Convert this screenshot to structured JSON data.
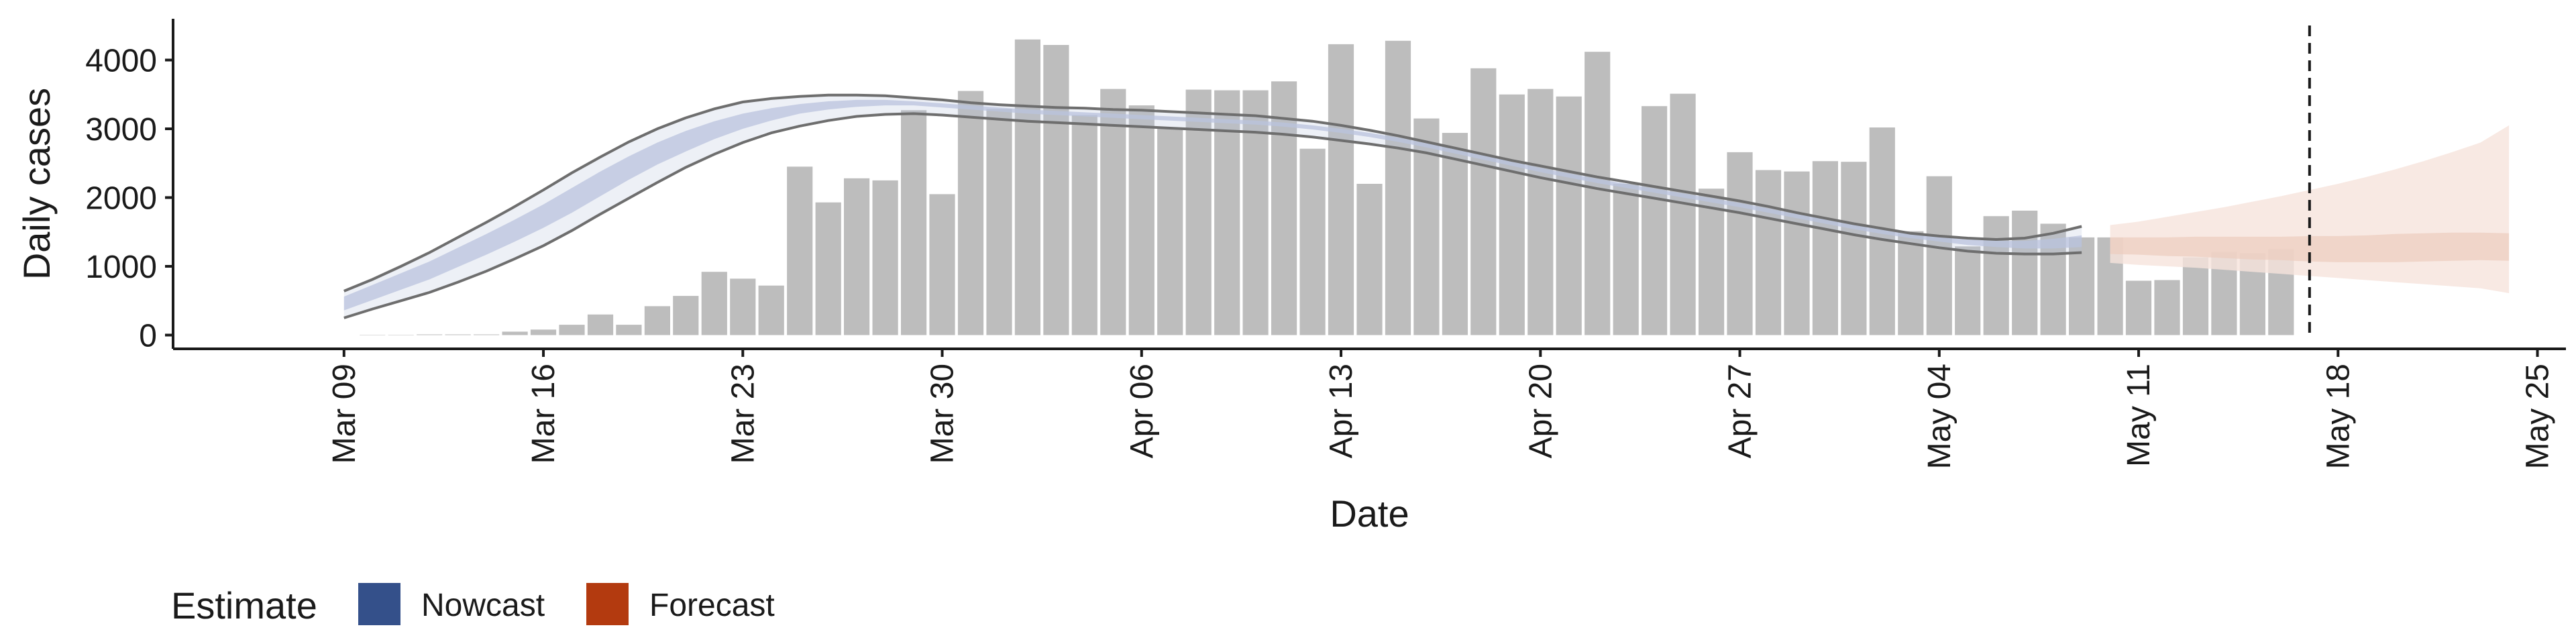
{
  "chart_data": {
    "type": "bar",
    "xlabel": "Date",
    "ylabel": "Daily cases",
    "x_ticks": [
      "Mar 09",
      "Mar 16",
      "Mar 23",
      "Mar 30",
      "Apr 06",
      "Apr 13",
      "Apr 20",
      "Apr 27",
      "May 04",
      "May 11",
      "May 18",
      "May 25"
    ],
    "x_range": [
      "2020-03-03",
      "2020-05-26"
    ],
    "y_ticks": [
      0,
      1000,
      2000,
      3000,
      4000
    ],
    "ylim": [
      -200,
      4600
    ],
    "grid": false,
    "reported_cases": {
      "start_date": "2020-03-10",
      "values": [
        0,
        0,
        10,
        10,
        10,
        50,
        80,
        150,
        300,
        150,
        420,
        570,
        920,
        820,
        720,
        2450,
        1930,
        2280,
        2250,
        3270,
        2050,
        3550,
        3290,
        4300,
        4220,
        3200,
        3580,
        3340,
        3010,
        3570,
        3560,
        3560,
        3690,
        2710,
        4230,
        2200,
        4280,
        3150,
        2940,
        3880,
        3500,
        3580,
        3470,
        4120,
        2200,
        3330,
        3510,
        2130,
        2660,
        2400,
        2380,
        2530,
        2520,
        3020,
        1510,
        2310,
        1290,
        1730,
        1810,
        1620,
        1420,
        1420,
        790,
        800,
        1130,
        1210,
        1190,
        1250
      ]
    },
    "nowcast": {
      "start_date": "2020-03-09",
      "median": [
        460,
        620,
        780,
        940,
        1130,
        1320,
        1520,
        1730,
        1960,
        2200,
        2430,
        2640,
        2820,
        2980,
        3110,
        3210,
        3290,
        3340,
        3370,
        3380,
        3370,
        3340,
        3310,
        3280,
        3250,
        3230,
        3210,
        3190,
        3170,
        3150,
        3130,
        3110,
        3090,
        3060,
        3020,
        2970,
        2910,
        2840,
        2760,
        2670,
        2580,
        2490,
        2400,
        2320,
        2240,
        2170,
        2100,
        2030,
        1960,
        1890,
        1810,
        1730,
        1650,
        1570,
        1500,
        1440,
        1390,
        1350,
        1320,
        1310,
        1320,
        1350
      ],
      "outer_upper": [
        640,
        810,
        1000,
        1200,
        1420,
        1640,
        1870,
        2110,
        2360,
        2590,
        2810,
        3000,
        3160,
        3290,
        3390,
        3440,
        3470,
        3490,
        3490,
        3480,
        3450,
        3420,
        3380,
        3350,
        3330,
        3310,
        3300,
        3280,
        3270,
        3250,
        3230,
        3210,
        3190,
        3150,
        3110,
        3050,
        2980,
        2900,
        2810,
        2720,
        2630,
        2540,
        2460,
        2380,
        2300,
        2230,
        2160,
        2090,
        2020,
        1950,
        1870,
        1780,
        1700,
        1620,
        1550,
        1480,
        1440,
        1410,
        1390,
        1410,
        1480,
        1580
      ],
      "outer_lower": [
        250,
        380,
        500,
        620,
        770,
        930,
        1110,
        1300,
        1520,
        1760,
        1990,
        2220,
        2440,
        2630,
        2800,
        2940,
        3040,
        3120,
        3180,
        3210,
        3220,
        3200,
        3170,
        3140,
        3110,
        3090,
        3070,
        3050,
        3030,
        3010,
        2990,
        2970,
        2950,
        2920,
        2880,
        2830,
        2780,
        2720,
        2650,
        2560,
        2470,
        2380,
        2290,
        2210,
        2130,
        2060,
        1990,
        1920,
        1850,
        1780,
        1700,
        1620,
        1540,
        1460,
        1390,
        1330,
        1270,
        1220,
        1190,
        1180,
        1180,
        1200
      ],
      "inner_upper": [
        560,
        730,
        900,
        1070,
        1270,
        1470,
        1680,
        1900,
        2140,
        2380,
        2600,
        2800,
        2970,
        3110,
        3220,
        3300,
        3360,
        3400,
        3420,
        3420,
        3400,
        3370,
        3340,
        3310,
        3280,
        3260,
        3240,
        3220,
        3200,
        3180,
        3160,
        3140,
        3120,
        3090,
        3050,
        3000,
        2940,
        2870,
        2790,
        2700,
        2610,
        2520,
        2430,
        2350,
        2270,
        2200,
        2130,
        2060,
        1990,
        1920,
        1840,
        1760,
        1680,
        1600,
        1530,
        1470,
        1420,
        1390,
        1370,
        1370,
        1400,
        1450
      ],
      "inner_lower": [
        360,
        510,
        660,
        810,
        990,
        1170,
        1360,
        1560,
        1780,
        2020,
        2260,
        2480,
        2670,
        2850,
        3000,
        3120,
        3220,
        3280,
        3320,
        3340,
        3340,
        3310,
        3280,
        3250,
        3220,
        3200,
        3180,
        3160,
        3140,
        3120,
        3100,
        3080,
        3060,
        3030,
        2990,
        2940,
        2880,
        2810,
        2730,
        2640,
        2550,
        2460,
        2370,
        2290,
        2210,
        2140,
        2070,
        2000,
        1930,
        1860,
        1780,
        1700,
        1620,
        1540,
        1470,
        1410,
        1360,
        1310,
        1280,
        1260,
        1260,
        1280
      ]
    },
    "forecast": {
      "start_date": "2020-05-10",
      "median": [
        1290,
        1290,
        1280,
        1280,
        1270,
        1260,
        1260,
        1250,
        1250,
        1260,
        1270,
        1280,
        1290,
        1300,
        1300
      ],
      "outer_upper": [
        1600,
        1650,
        1720,
        1790,
        1860,
        1940,
        2020,
        2110,
        2200,
        2300,
        2410,
        2530,
        2660,
        2800,
        3050
      ],
      "outer_lower": [
        1050,
        1020,
        1000,
        980,
        950,
        920,
        890,
        860,
        830,
        800,
        770,
        740,
        710,
        680,
        610
      ],
      "inner_upper": [
        1420,
        1420,
        1420,
        1430,
        1430,
        1430,
        1430,
        1440,
        1440,
        1450,
        1470,
        1480,
        1490,
        1490,
        1480
      ],
      "inner_lower": [
        1180,
        1170,
        1150,
        1140,
        1120,
        1100,
        1090,
        1070,
        1060,
        1060,
        1060,
        1070,
        1080,
        1090,
        1080
      ]
    },
    "vline_date": "2020-05-17",
    "legend": {
      "title": "Estimate",
      "position": "bottom",
      "items": [
        {
          "label": "Nowcast",
          "color": "#34508a"
        },
        {
          "label": "Forecast",
          "color": "#b33a0f"
        }
      ]
    },
    "colors": {
      "bars": "#bdbdbd",
      "nowcast_band": "#b9c3dd",
      "nowcast_lines": "#6e6e6e",
      "forecast_outer": "#f6e4dc",
      "forecast_inner": "#ecccbd",
      "vline": "#1a1a1a"
    }
  }
}
